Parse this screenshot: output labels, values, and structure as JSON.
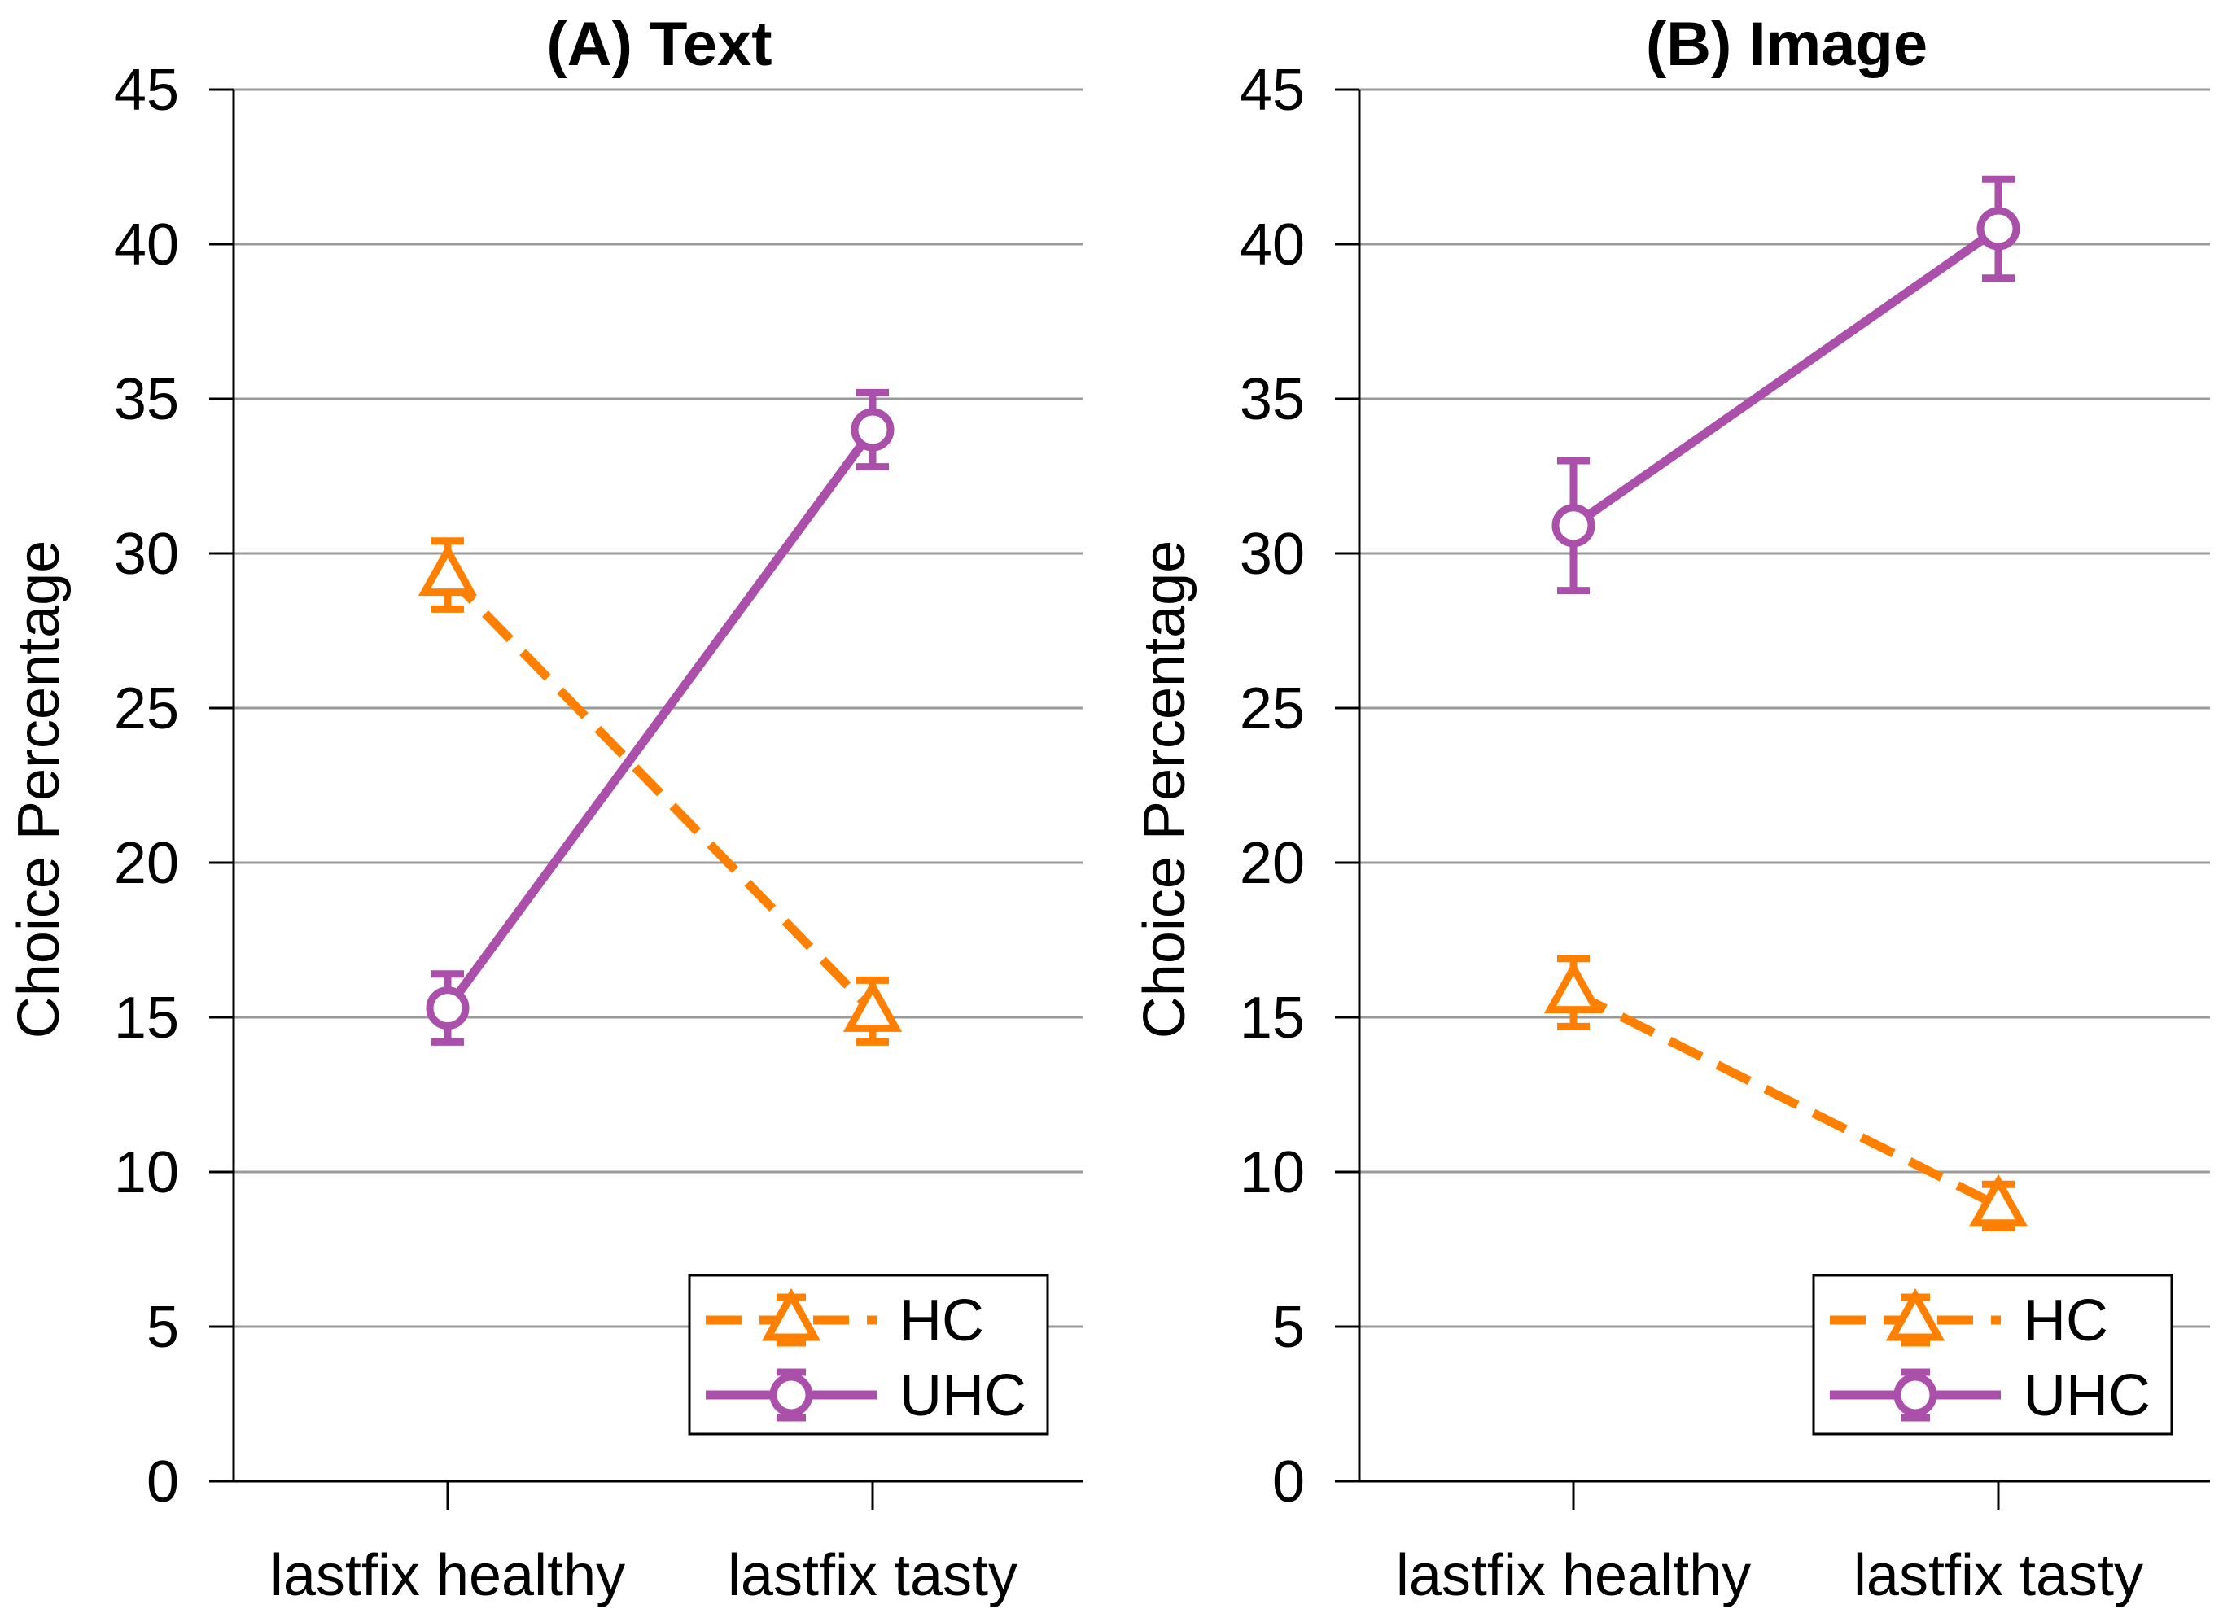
{
  "chart_data": [
    {
      "type": "line",
      "title": "(A) Text",
      "xlabel": "",
      "ylabel": "Choice Percentage",
      "categories": [
        "lastfix healthy",
        "lastfix tasty"
      ],
      "ylim": [
        0,
        45
      ],
      "yticks": [
        0,
        5,
        10,
        15,
        20,
        25,
        30,
        35,
        40,
        45
      ],
      "grid": true,
      "legend_position": "bottom-right",
      "series": [
        {
          "name": "HC",
          "values": [
            29.3,
            15.2
          ],
          "error": [
            1.1,
            1.0
          ],
          "color": "#FF8000",
          "line_style": "dashed",
          "marker": "triangle"
        },
        {
          "name": "UHC",
          "values": [
            15.3,
            34.0
          ],
          "error": [
            1.1,
            1.2
          ],
          "color": "#AA4FAA",
          "line_style": "solid",
          "marker": "circle"
        }
      ]
    },
    {
      "type": "line",
      "title": "(B) Image",
      "xlabel": "",
      "ylabel": "Choice Percentage",
      "categories": [
        "lastfix healthy",
        "lastfix tasty"
      ],
      "ylim": [
        0,
        45
      ],
      "yticks": [
        0,
        5,
        10,
        15,
        20,
        25,
        30,
        35,
        40,
        45
      ],
      "grid": true,
      "legend_position": "bottom-right",
      "series": [
        {
          "name": "HC",
          "values": [
            15.8,
            8.9
          ],
          "error": [
            1.1,
            0.7
          ],
          "color": "#FF8000",
          "line_style": "dashed",
          "marker": "triangle"
        },
        {
          "name": "UHC",
          "values": [
            30.9,
            40.5
          ],
          "error": [
            2.1,
            1.6
          ],
          "color": "#AA4FAA",
          "line_style": "solid",
          "marker": "circle"
        }
      ]
    }
  ]
}
